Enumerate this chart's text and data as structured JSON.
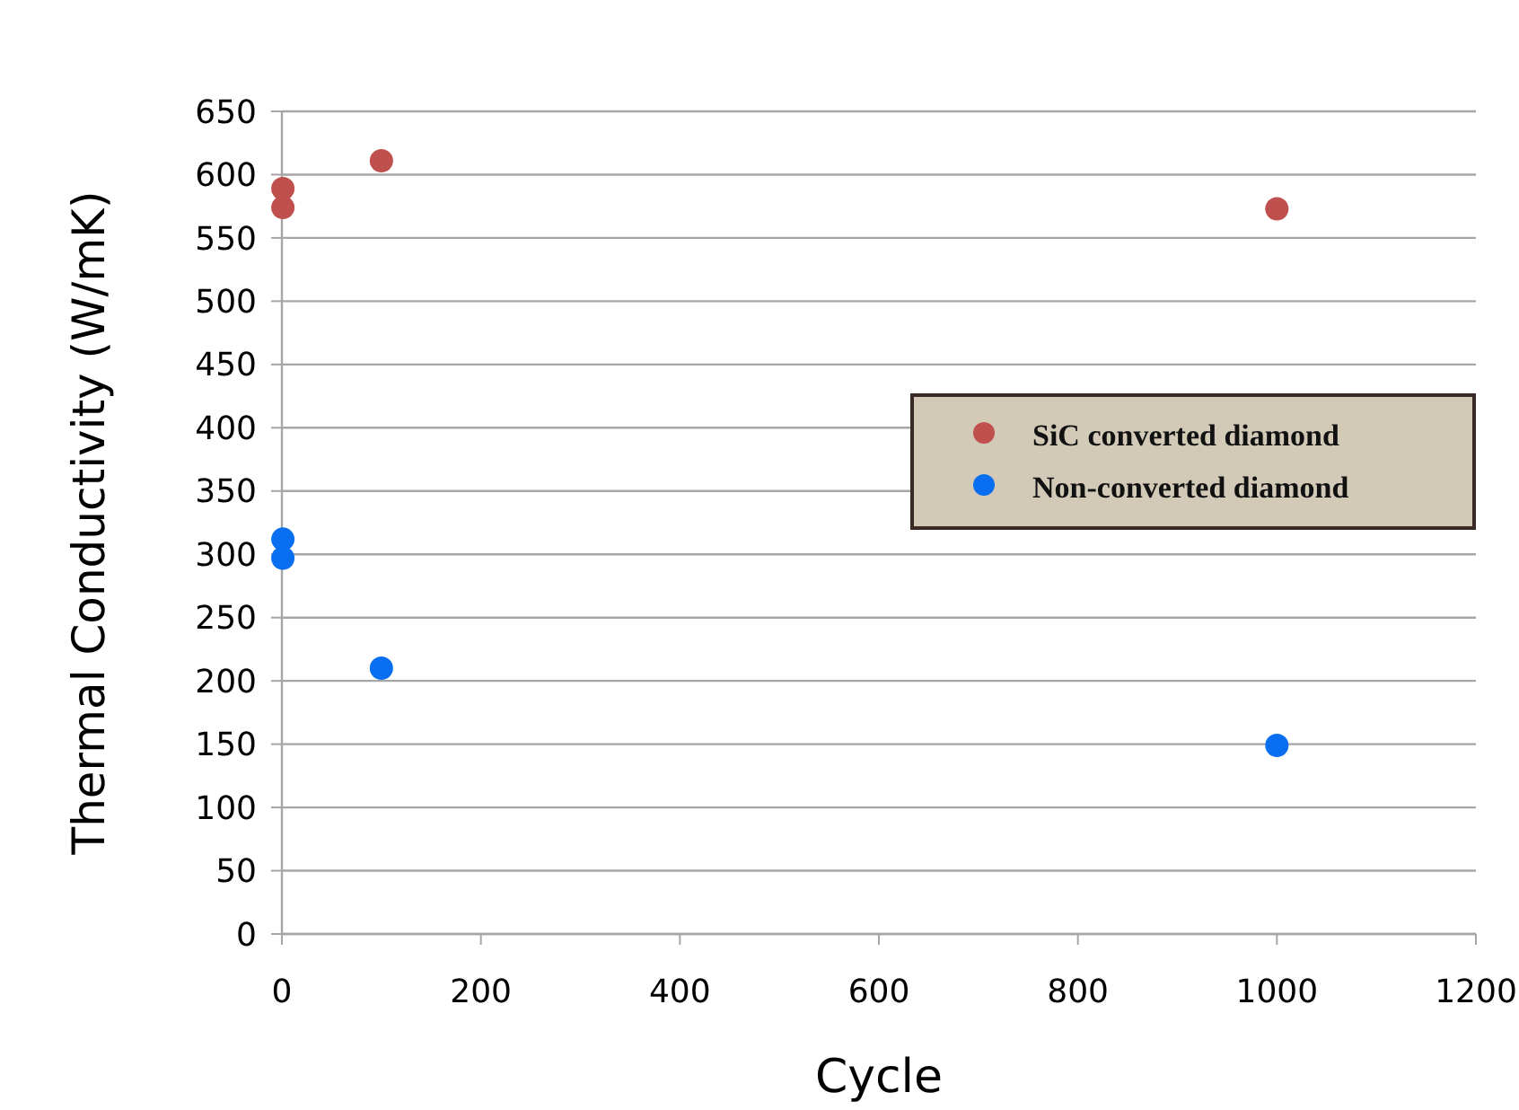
{
  "chart_data": {
    "type": "scatter",
    "xlabel": "Cycle",
    "ylabel": "Thermal Conductivity (W/mK)",
    "xlim": [
      0,
      1200
    ],
    "xticks": [
      0,
      200,
      400,
      600,
      800,
      1000,
      1200
    ],
    "ylim": [
      0,
      650
    ],
    "yticks": [
      0,
      50,
      100,
      150,
      200,
      250,
      300,
      350,
      400,
      450,
      500,
      550,
      600,
      650
    ],
    "grid": "y",
    "legend": "right",
    "marker": "circle",
    "series": [
      {
        "name": "SiC converted diamond",
        "color": "#c0504d",
        "x": [
          1,
          1,
          100,
          1000
        ],
        "values": [
          589,
          574,
          611,
          573
        ]
      },
      {
        "name": "Non-converted diamond",
        "color": "#0a6ef0",
        "x": [
          1,
          1,
          100,
          1000
        ],
        "values": [
          312,
          297,
          210,
          149
        ]
      }
    ]
  }
}
